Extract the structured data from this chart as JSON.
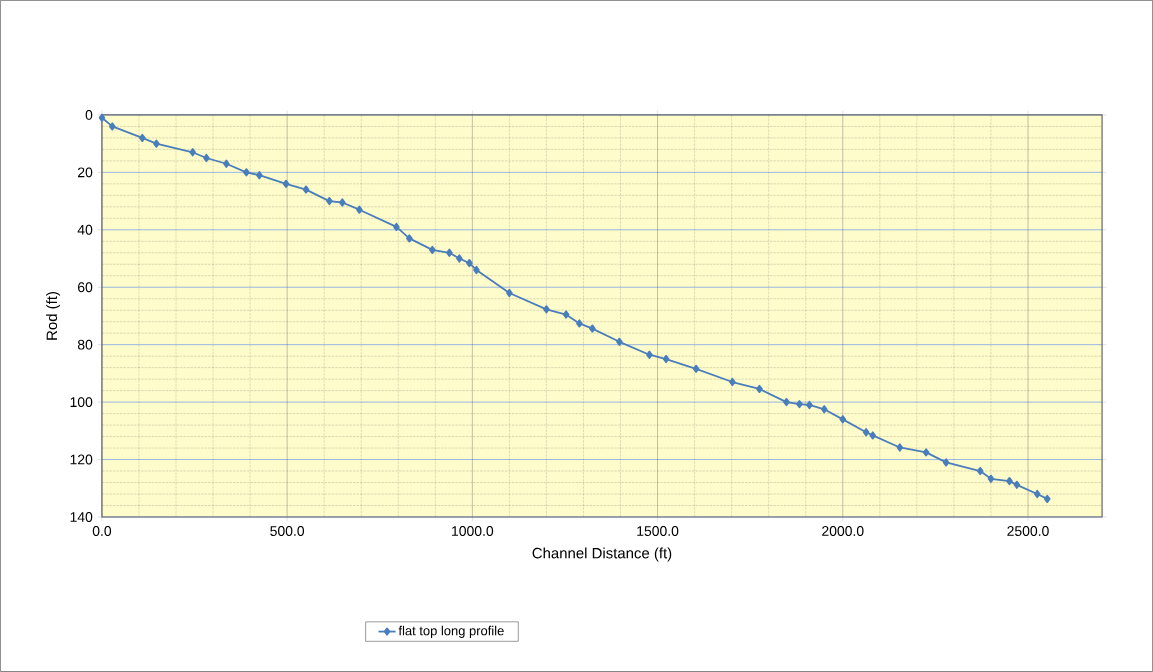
{
  "chart_data": {
    "type": "line",
    "xlabel": "Channel Distance (ft)",
    "ylabel": "Rod (ft)",
    "xlim": [
      0,
      2700
    ],
    "ylim": [
      140,
      0
    ],
    "xticks": [
      {
        "value": 0,
        "label": "0.0"
      },
      {
        "value": 500,
        "label": "500.0"
      },
      {
        "value": 1000,
        "label": "1000.0"
      },
      {
        "value": 1500,
        "label": "1500.0"
      },
      {
        "value": 2000,
        "label": "2000.0"
      },
      {
        "value": 2500,
        "label": "2500.0"
      }
    ],
    "yticks": [
      0,
      20,
      40,
      60,
      80,
      100,
      120,
      140
    ],
    "grid": true,
    "legend": "bottom",
    "marker": "diamond",
    "line_style": "solid",
    "series": [
      {
        "name": "flat top long profile",
        "color": "#4a7ebb",
        "x": [
          0,
          28,
          109,
          147,
          245,
          282,
          336,
          390,
          425,
          497,
          551,
          614,
          649,
          695,
          795,
          830,
          892,
          938,
          965,
          992,
          1011,
          1100,
          1200,
          1253,
          1289,
          1324,
          1397,
          1478,
          1523,
          1604,
          1702,
          1775,
          1848,
          1883,
          1910,
          1950,
          2000,
          2063,
          2081,
          2154,
          2225,
          2279,
          2371,
          2400,
          2450,
          2470,
          2525,
          2552
        ],
        "values": [
          1,
          4,
          8,
          10,
          13,
          15,
          17,
          20,
          21,
          24,
          26,
          30,
          30.5,
          33,
          39,
          43,
          47,
          48,
          50,
          51.6,
          54,
          62,
          67.7,
          69.5,
          72.6,
          74.4,
          79,
          83.5,
          85,
          88.4,
          93,
          95.4,
          100,
          100.7,
          101,
          102.5,
          106,
          110.5,
          111.6,
          115.8,
          117.5,
          121,
          124,
          126.7,
          127.5,
          128.8,
          132,
          133.7
        ]
      }
    ]
  }
}
